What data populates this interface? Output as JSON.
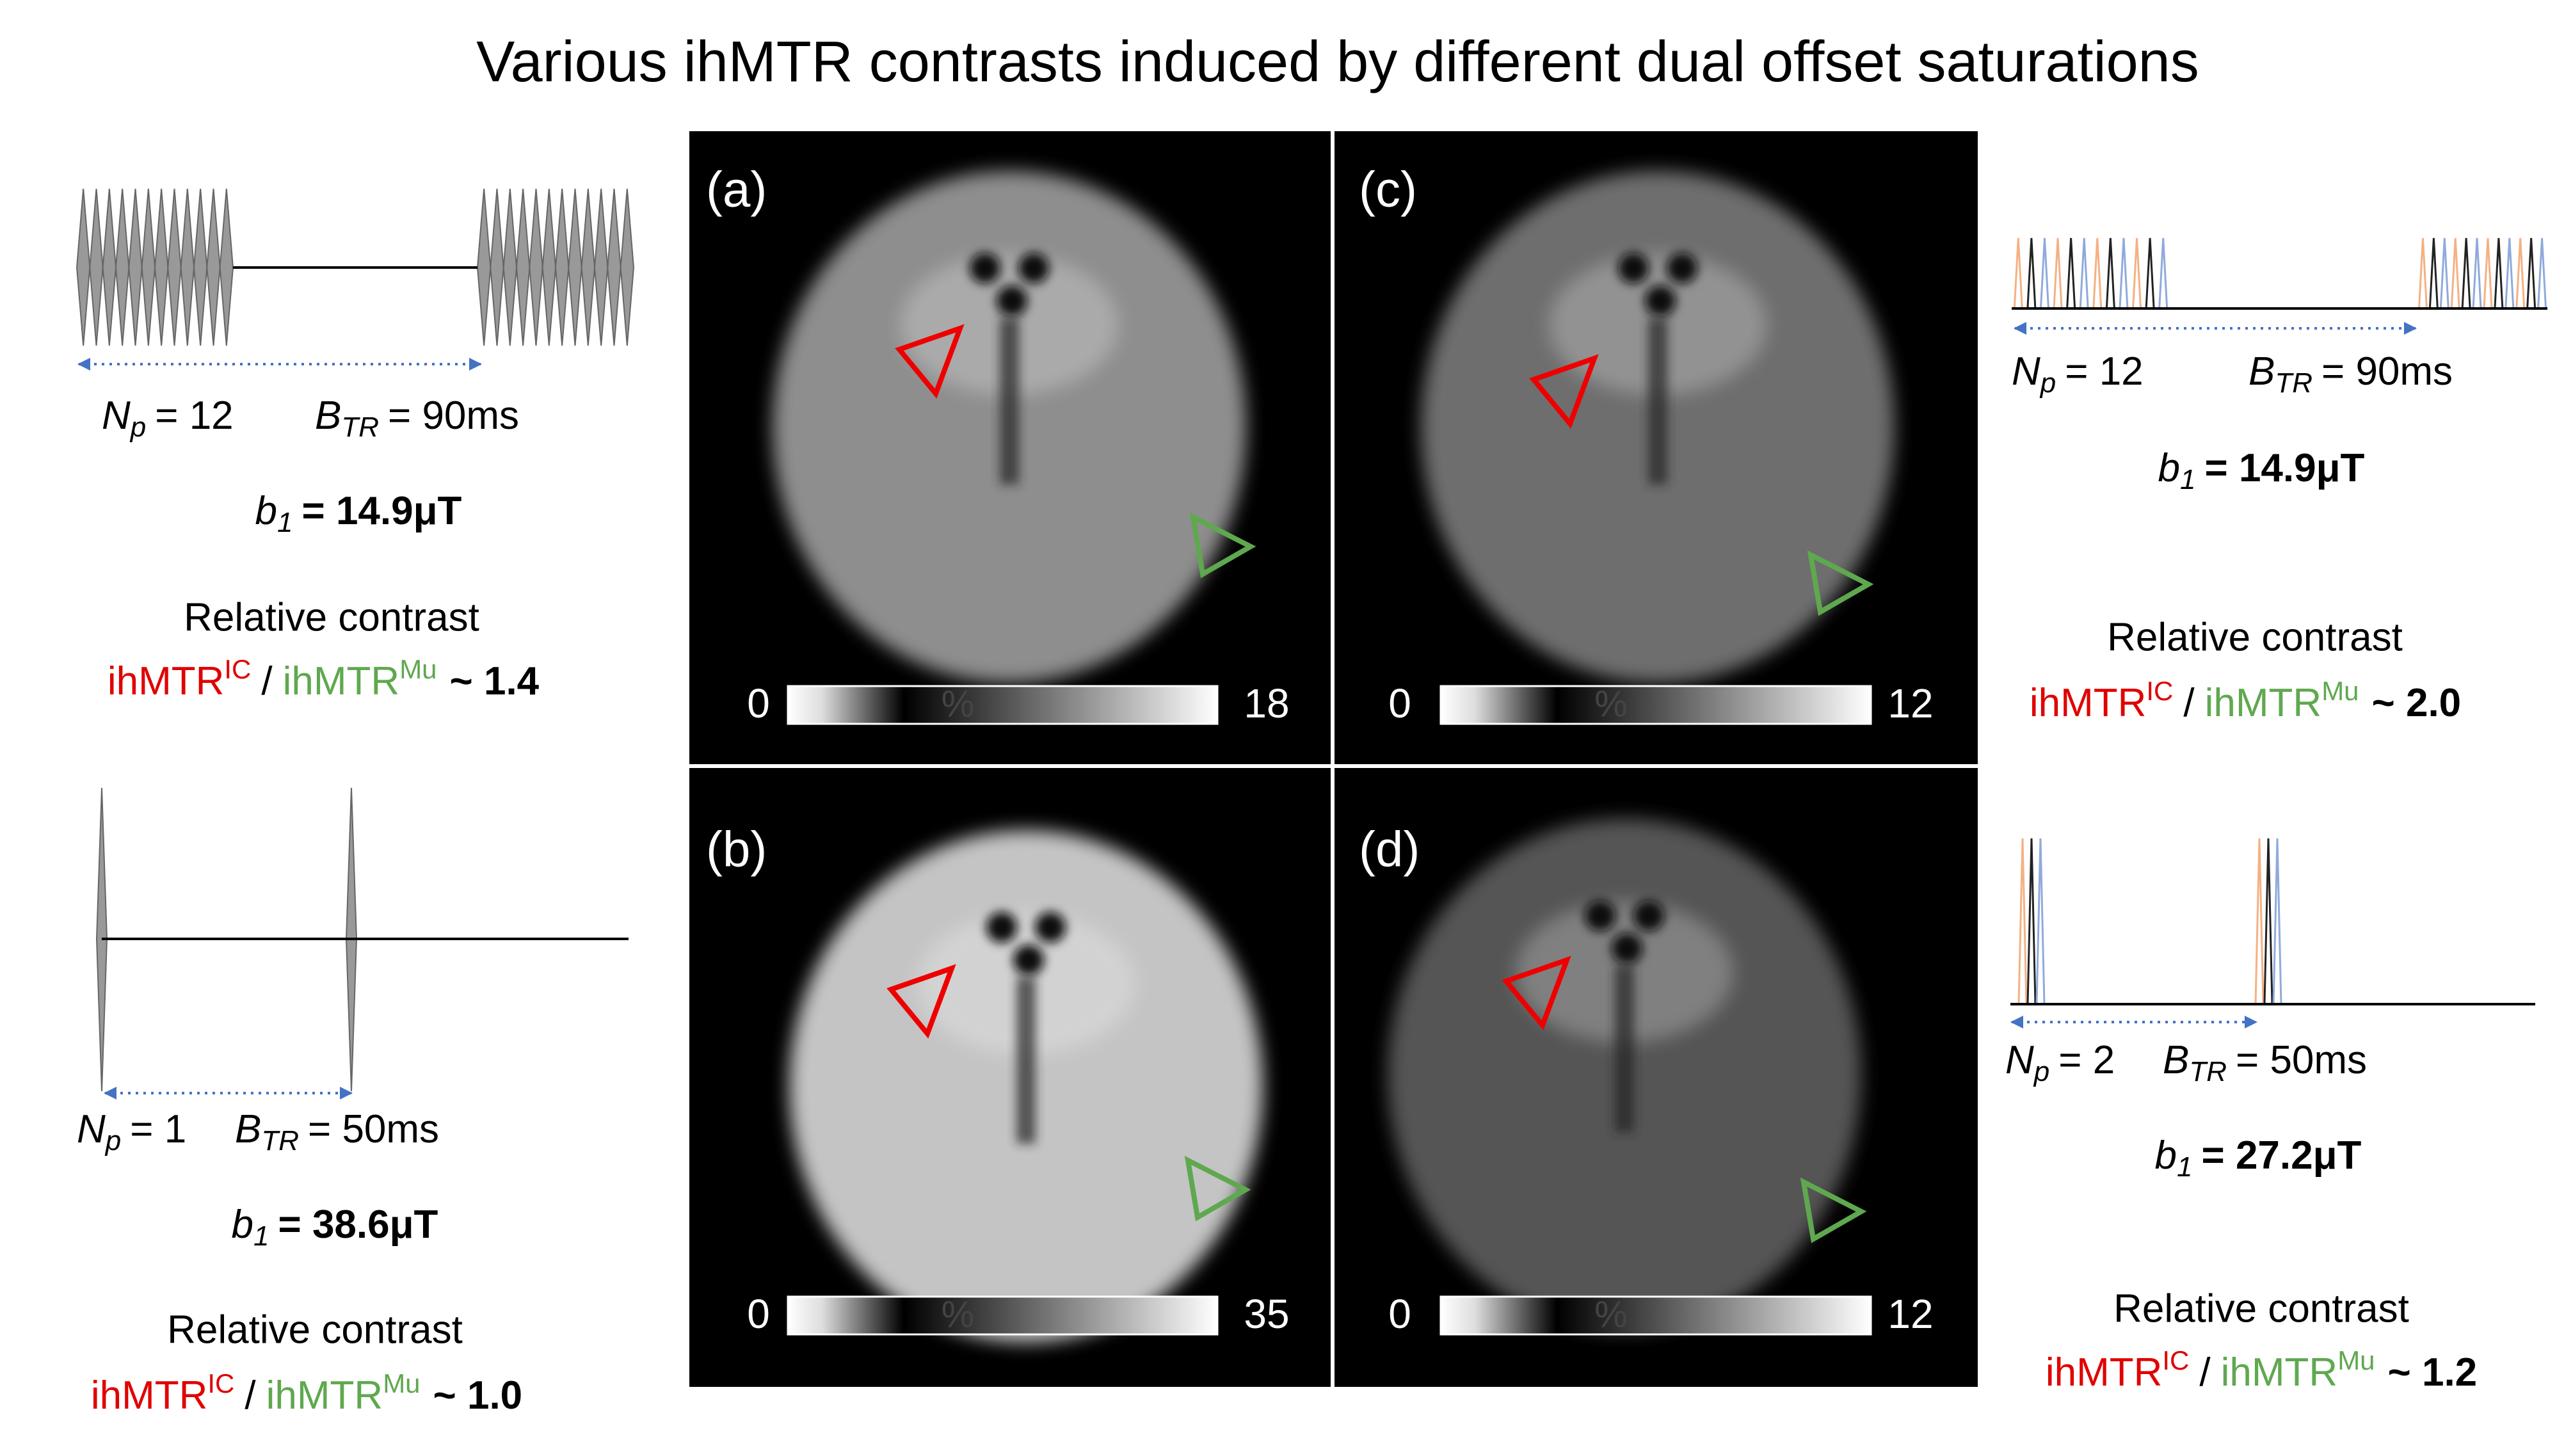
{
  "title": "Various ihMTR contrasts induced by different dual offset saturations",
  "panels": [
    {
      "label": "(a)",
      "scale": {
        "min": 0,
        "unit": "%",
        "max": 18
      }
    },
    {
      "label": "(b)",
      "scale": {
        "min": 0,
        "unit": "%",
        "max": 35
      }
    },
    {
      "label": "(c)",
      "scale": {
        "min": 0,
        "unit": "%",
        "max": 12
      }
    },
    {
      "label": "(d)",
      "scale": {
        "min": 0,
        "unit": "%",
        "max": 12
      }
    }
  ],
  "sequences": [
    {
      "np": {
        "symbol": "N",
        "sub": "p",
        "eq": "= 12"
      },
      "btr": {
        "symbol": "B",
        "sub": "TR",
        "eq": "= 90ms"
      },
      "b1": {
        "symbol": "b",
        "sub": "1",
        "eq": "= 14.9μT"
      },
      "contrast": {
        "label": "Relative contrast",
        "num": {
          "text": "ihMTR",
          "sup": "IC"
        },
        "sep": "/",
        "den": {
          "text": "ihMTR",
          "sup": "Mu"
        },
        "ratio": "~ 1.4"
      }
    },
    {
      "np": {
        "symbol": "N",
        "sub": "p",
        "eq": "= 12"
      },
      "btr": {
        "symbol": "B",
        "sub": "TR",
        "eq": "= 90ms"
      },
      "b1": {
        "symbol": "b",
        "sub": "1",
        "eq": "= 14.9μT"
      },
      "contrast": {
        "label": "Relative contrast",
        "num": {
          "text": "ihMTR",
          "sup": "IC"
        },
        "sep": "/",
        "den": {
          "text": "ihMTR",
          "sup": "Mu"
        },
        "ratio": "~ 2.0"
      }
    },
    {
      "np": {
        "symbol": "N",
        "sub": "p",
        "eq": "= 1"
      },
      "btr": {
        "symbol": "B",
        "sub": "TR",
        "eq": "= 50ms"
      },
      "b1": {
        "symbol": "b",
        "sub": "1",
        "eq": "= 38.6μT"
      },
      "contrast": {
        "label": "Relative contrast",
        "num": {
          "text": "ihMTR",
          "sup": "IC"
        },
        "sep": "/",
        "den": {
          "text": "ihMTR",
          "sup": "Mu"
        },
        "ratio": "~ 1.0"
      }
    },
    {
      "np": {
        "symbol": "N",
        "sub": "p",
        "eq": "= 2"
      },
      "btr": {
        "symbol": "B",
        "sub": "TR",
        "eq": "= 50ms"
      },
      "b1": {
        "symbol": "b",
        "sub": "1",
        "eq": "= 27.2μT"
      },
      "contrast": {
        "label": "Relative contrast",
        "num": {
          "text": "ihMTR",
          "sup": "IC"
        },
        "sep": "/",
        "den": {
          "text": "ihMTR",
          "sup": "Mu"
        },
        "ratio": "~ 1.2"
      }
    }
  ]
}
